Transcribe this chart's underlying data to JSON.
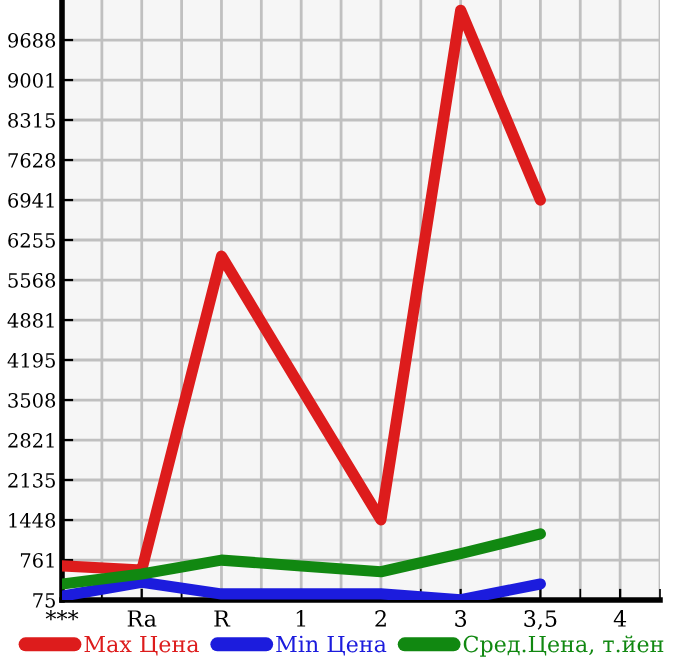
{
  "chart_data": {
    "type": "line",
    "categories": [
      "***",
      "Ra",
      "R",
      "1",
      "2",
      "3",
      "3,5",
      "4"
    ],
    "series": [
      {
        "name": "Max Цена",
        "color": "#dd1c1c",
        "values": [
          660,
          590,
          5980,
          3710,
          1450,
          10200,
          6940,
          null
        ]
      },
      {
        "name": "Min Цена",
        "color": "#1c1cdd",
        "values": [
          140,
          380,
          180,
          180,
          180,
          80,
          350,
          null
        ]
      },
      {
        "name": "Сред.Цена, т.йен",
        "color": "#118811",
        "values": [
          350,
          520,
          760,
          660,
          560,
          870,
          1210,
          null
        ]
      }
    ],
    "ylim": [
      75,
      10375
    ],
    "yticks": [
      75,
      761,
      1448,
      2135,
      2821,
      3508,
      4195,
      4881,
      5568,
      6255,
      6941,
      7628,
      8315,
      9001,
      9688
    ],
    "grid": true,
    "legend": "bottom",
    "marker": "none",
    "line_style": "solid"
  }
}
